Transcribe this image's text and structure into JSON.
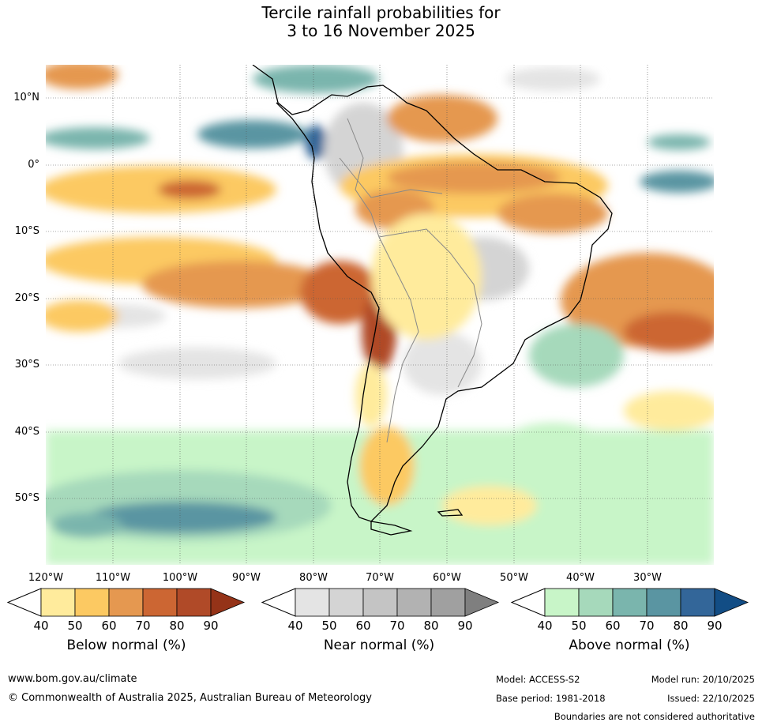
{
  "title": {
    "line1": "Tercile rainfall probabilities for",
    "line2": "3 to 16 November 2025"
  },
  "map": {
    "lat_labels": [
      "10°N",
      "0°",
      "10°S",
      "20°S",
      "30°S",
      "40°S",
      "50°S"
    ],
    "lon_labels": [
      "120°W",
      "110°W",
      "100°W",
      "90°W",
      "80°W",
      "70°W",
      "60°W",
      "50°W",
      "40°W",
      "30°W"
    ]
  },
  "colorbars": [
    {
      "name": "below",
      "label": "Below normal (%)",
      "ticks": [
        "40",
        "50",
        "60",
        "70",
        "80",
        "90"
      ],
      "colors": [
        "#ffeb9c",
        "#fcc962",
        "#e59850",
        "#cc6633",
        "#b04a28",
        "#953318"
      ]
    },
    {
      "name": "near",
      "label": "Near normal (%)",
      "ticks": [
        "40",
        "50",
        "60",
        "70",
        "80",
        "90"
      ],
      "colors": [
        "#e4e4e4",
        "#d4d4d4",
        "#c4c4c4",
        "#b2b2b2",
        "#a0a0a0",
        "#7f7f7f"
      ]
    },
    {
      "name": "above",
      "label": "Above normal (%)",
      "ticks": [
        "40",
        "50",
        "60",
        "70",
        "80",
        "90"
      ],
      "colors": [
        "#c8f5c8",
        "#a6d9bb",
        "#7ab5ad",
        "#5a95a2",
        "#336699",
        "#124d85"
      ]
    }
  ],
  "footer": {
    "website": "www.bom.gov.au/climate",
    "copyright": "© Commonwealth of Australia 2025, Australian Bureau of Meteorology",
    "model": "Model: ACCESS-S2",
    "base_period": "Base period: 1981-2018",
    "model_run": "Model run: 20/10/2025",
    "issued": "Issued: 22/10/2025",
    "disclaimer": "Boundaries are not considered authoritative"
  }
}
